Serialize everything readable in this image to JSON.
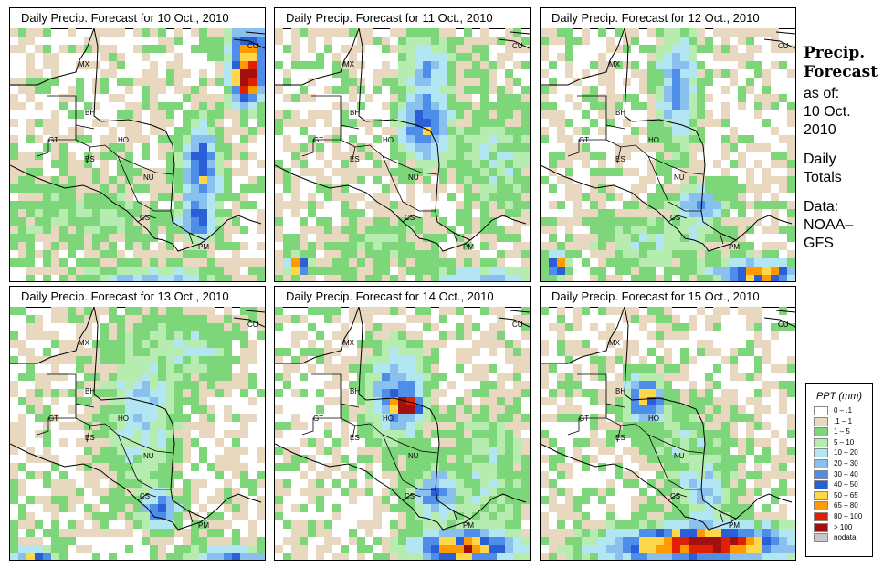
{
  "side_text": {
    "title_line1": "Precip.",
    "title_line2": "Forecast",
    "asof": "as of:",
    "date_line1": "10 Oct.",
    "date_line2": "2010",
    "daily_line1": "Daily",
    "daily_line2": "Totals",
    "data_line1": "Data:",
    "data_line2": "NOAA–",
    "data_line3": "GFS"
  },
  "panels": [
    {
      "title": "Daily Precip. Forecast for  10 Oct., 2010"
    },
    {
      "title": "Daily Precip. Forecast for  11 Oct., 2010"
    },
    {
      "title": "Daily Precip. Forecast for  12 Oct., 2010"
    },
    {
      "title": "Daily Precip. Forecast for  13 Oct., 2010"
    },
    {
      "title": "Daily Precip. Forecast for  14 Oct., 2010"
    },
    {
      "title": "Daily Precip. Forecast for  15 Oct., 2010"
    }
  ],
  "country_labels": [
    "MX",
    "BH",
    "GT",
    "HO",
    "ES",
    "NU",
    "CS",
    "PM",
    "CU"
  ],
  "legend": {
    "title": "PPT (mm)",
    "items": [
      {
        "label": "0 – .1",
        "color": "#ffffff"
      },
      {
        "label": ".1 – 1",
        "color": "#e8d8c0"
      },
      {
        "label": "1 – 5",
        "color": "#7ed67a"
      },
      {
        "label": "5 – 10",
        "color": "#b7ecb0"
      },
      {
        "label": "10 – 20",
        "color": "#b2e6f2"
      },
      {
        "label": "20 – 30",
        "color": "#8ac0ee"
      },
      {
        "label": "30 – 40",
        "color": "#4e8ee8"
      },
      {
        "label": "40 – 50",
        "color": "#2a5fd6"
      },
      {
        "label": "50 – 65",
        "color": "#ffd84a"
      },
      {
        "label": "65 – 80",
        "color": "#ff9a00"
      },
      {
        "label": "80 – 100",
        "color": "#e02000"
      },
      {
        "label": "> 100",
        "color": "#a01010"
      },
      {
        "label": "nodata",
        "color": "#c8c8c8"
      }
    ]
  }
}
